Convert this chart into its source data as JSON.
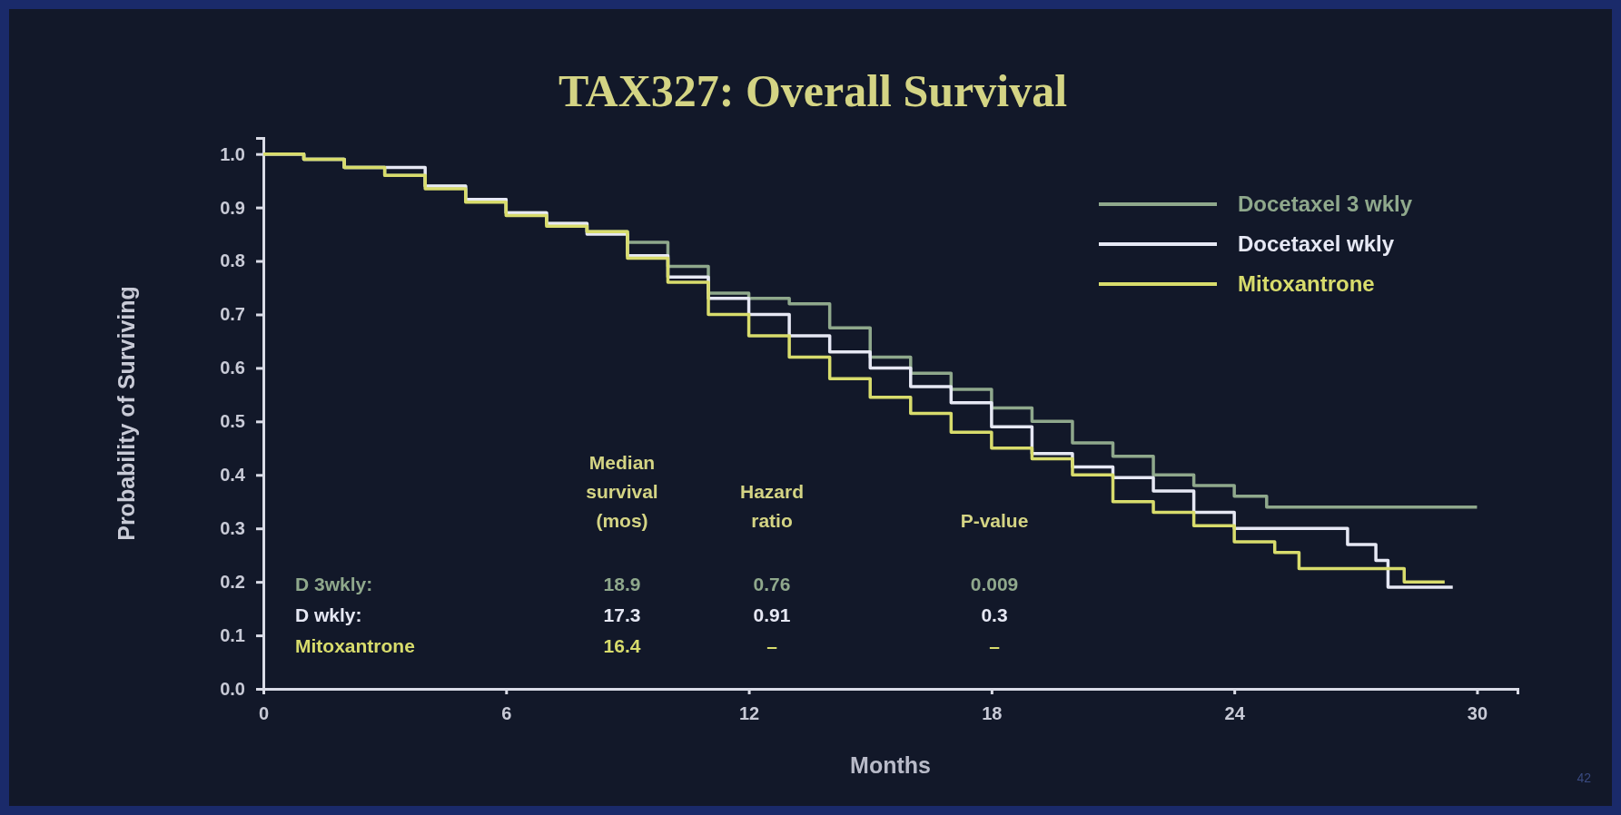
{
  "chart_data": {
    "type": "step",
    "title": "TAX327:  Overall Survival",
    "xlabel": "Months",
    "ylabel": "Probability of Surviving",
    "xlim": [
      0,
      31
    ],
    "xticks": [
      0,
      6,
      12,
      18,
      24,
      30
    ],
    "ylim": [
      0,
      1.03
    ],
    "yticks": [
      {
        "value": 0,
        "label": "0.0"
      },
      {
        "value": 0.1,
        "label": "0.1"
      },
      {
        "value": 0.2,
        "label": "0.2"
      },
      {
        "value": 0.3,
        "label": "0.3"
      },
      {
        "value": 0.4,
        "label": "0.4"
      },
      {
        "value": 0.5,
        "label": "0.5"
      },
      {
        "value": 0.6,
        "label": "0.6"
      },
      {
        "value": 0.7,
        "label": "0.7"
      },
      {
        "value": 0.8,
        "label": "0.8"
      },
      {
        "value": 0.9,
        "label": "0.9"
      },
      {
        "value": 1,
        "label": "1.0"
      }
    ],
    "grid": false,
    "legend": "top right",
    "line_style": "solid",
    "marker": "none",
    "series": [
      {
        "name": "Docetaxel 3 wkly",
        "color": "#8fa88c",
        "x": [
          0,
          1,
          2,
          3,
          4,
          5,
          6,
          7,
          8,
          9,
          10,
          11,
          12,
          13,
          14,
          15,
          16,
          17,
          18,
          19,
          20,
          21,
          22,
          23,
          24,
          24.8,
          30
        ],
        "values": [
          1,
          0.99,
          0.975,
          0.96,
          0.94,
          0.915,
          0.89,
          0.87,
          0.855,
          0.835,
          0.79,
          0.74,
          0.73,
          0.72,
          0.675,
          0.62,
          0.59,
          0.56,
          0.525,
          0.5,
          0.46,
          0.435,
          0.4,
          0.38,
          0.36,
          0.34,
          0.34
        ]
      },
      {
        "name": "Docetaxel wkly",
        "color": "#e6e8f4",
        "x": [
          0,
          1,
          2,
          4,
          5,
          6,
          7,
          8,
          9,
          10,
          11,
          12,
          13,
          14,
          15,
          16,
          17,
          18,
          19,
          20,
          21,
          22,
          23,
          24,
          25.3,
          26.8,
          27.5,
          27.8,
          29.4
        ],
        "values": [
          1,
          0.99,
          0.975,
          0.94,
          0.915,
          0.89,
          0.87,
          0.85,
          0.81,
          0.77,
          0.73,
          0.7,
          0.66,
          0.63,
          0.6,
          0.565,
          0.535,
          0.49,
          0.44,
          0.415,
          0.395,
          0.37,
          0.33,
          0.3,
          0.3,
          0.27,
          0.24,
          0.19,
          0.19
        ]
      },
      {
        "name": "Mitoxantrone",
        "color": "#d8dc6c",
        "x": [
          0,
          1,
          2,
          3,
          4,
          5,
          6,
          7,
          8,
          9,
          10,
          11,
          12,
          13,
          14,
          15,
          16,
          17,
          18,
          19,
          20,
          21,
          22,
          23,
          24,
          25,
          25.6,
          28.2,
          29.2
        ],
        "values": [
          1,
          0.99,
          0.975,
          0.96,
          0.935,
          0.91,
          0.885,
          0.865,
          0.855,
          0.805,
          0.76,
          0.7,
          0.66,
          0.62,
          0.58,
          0.545,
          0.515,
          0.48,
          0.45,
          0.43,
          0.4,
          0.35,
          0.33,
          0.305,
          0.275,
          0.255,
          0.225,
          0.2,
          0.2
        ]
      }
    ],
    "annotations": [
      "Median\nsurvival\n(mos)",
      "Hazard\nratio",
      "P-value",
      "D  3wkly:",
      "18.9",
      "0.76",
      "0.009",
      "D  wkly:",
      "17.3",
      "0.91",
      "0.3",
      "Mitoxantrone",
      "16.4",
      "–",
      "–",
      "42"
    ]
  }
}
